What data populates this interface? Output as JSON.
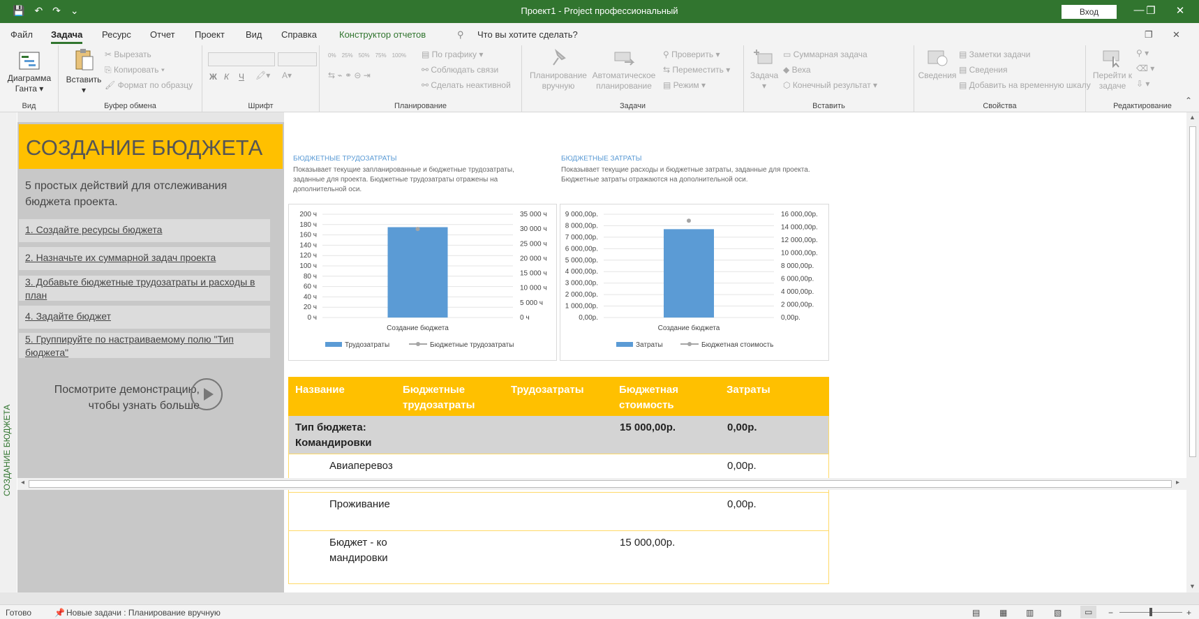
{
  "titlebar": {
    "title": "Проект1  -  Project профессиональный",
    "signin": "Вход",
    "minimize": "—",
    "restore": "❐",
    "close": "✕"
  },
  "menu": {
    "tabs": [
      "Файл",
      "Задача",
      "Ресурс",
      "Отчет",
      "Проект",
      "Вид",
      "Справка",
      "Конструктор отчетов"
    ],
    "active": "Задача",
    "search_placeholder": "Что вы хотите сделать?"
  },
  "ribbon": {
    "view": {
      "gantt": "Диаграмма Ганта",
      "label": "Вид"
    },
    "clipboard": {
      "paste": "Вставить",
      "cut": "Вырезать",
      "copy": "Копировать",
      "format_painter": "Формат по образцу",
      "label": "Буфер обмена"
    },
    "font": {
      "bold": "Ж",
      "italic": "К",
      "underline": "Ч",
      "label": "Шрифт"
    },
    "schedule": {
      "on_track": "По графику",
      "respect_links": "Соблюдать связи",
      "inactivate": "Сделать неактивной",
      "pcts": [
        "0%",
        "25%",
        "50%",
        "75%",
        "100%"
      ],
      "label": "Планирование"
    },
    "tasks": {
      "manual": "Планирование вручную",
      "auto": "Автоматическое планирование",
      "inspect": "Проверить",
      "move": "Переместить",
      "mode": "Режим",
      "label": "Задачи"
    },
    "insert": {
      "task": "Задача",
      "summary": "Суммарная задача",
      "milestone": "Веха",
      "deliverable": "Конечный результат",
      "label": "Вставить"
    },
    "properties": {
      "information": "Сведения",
      "notes": "Заметки задачи",
      "details": "Сведения",
      "timeline": "Добавить на временную шкалу",
      "label": "Свойства"
    },
    "editing": {
      "goto": "Перейти к задаче",
      "label": "Редактирование"
    }
  },
  "side_vertical_label": "СОЗДАНИЕ БЮДЖЕТА",
  "left_panel": {
    "title": "СОЗДАНИЕ БЮДЖЕТА",
    "intro": "5 простых действий для отслеживания бюджета проекта.",
    "steps": [
      "1. Создайте ресурсы бюджета",
      "2. Назначьте их суммарной задач проекта",
      "3. Добавьте бюджетные трудозатраты и расходы в план",
      "4. Задайте бюджет",
      "5. Группируйте по настраиваемому полю \"Тип бюджета\""
    ],
    "demo": "Посмотрите демонстрацию, чтобы узнать больше"
  },
  "charts": [
    {
      "heading": "БЮДЖЕТНЫЕ ТРУДОЗАТРАТЫ",
      "description": "Показывает текущие запланированные и бюджетные трудозатраты, заданные для проекта. Бюджетные трудозатраты отражены на дополнительной оси."
    },
    {
      "heading": "БЮДЖЕТНЫЕ ЗАТРАТЫ",
      "description": "Показывает текущие расходы и бюджетные затраты, заданные для проекта. Бюджетные затраты отражаются на дополнительной оси."
    }
  ],
  "chart_data": [
    {
      "type": "bar",
      "categories": [
        "Создание бюджета"
      ],
      "series": [
        {
          "name": "Трудозатраты",
          "values": [
            175
          ],
          "axis": "primary",
          "kind": "bar",
          "color": "#5b9bd5"
        },
        {
          "name": "Бюджетные трудозатраты",
          "values": [
            30000
          ],
          "axis": "secondary",
          "kind": "line",
          "color": "#a5a5a5"
        }
      ],
      "y_ticks": [
        "200 ч",
        "180 ч",
        "160 ч",
        "140 ч",
        "120 ч",
        "100 ч",
        "80 ч",
        "60 ч",
        "40 ч",
        "20 ч",
        "0 ч"
      ],
      "y2_ticks": [
        "35 000 ч",
        "30 000 ч",
        "25 000 ч",
        "20 000 ч",
        "15 000 ч",
        "10 000 ч",
        "5 000 ч",
        "0 ч"
      ],
      "ylim": [
        0,
        200
      ],
      "y2lim": [
        0,
        35000
      ],
      "legend": "bottom",
      "grid": true
    },
    {
      "type": "bar",
      "categories": [
        "Создание бюджета"
      ],
      "series": [
        {
          "name": "Затраты",
          "values": [
            7700
          ],
          "axis": "primary",
          "kind": "bar",
          "color": "#5b9bd5"
        },
        {
          "name": "Бюджетная стоимость",
          "values": [
            15000
          ],
          "axis": "secondary",
          "kind": "line",
          "color": "#a5a5a5"
        }
      ],
      "y_ticks": [
        "9 000,00р.",
        "8 000,00р.",
        "7 000,00р.",
        "6 000,00р.",
        "5 000,00р.",
        "4 000,00р.",
        "3 000,00р.",
        "2 000,00р.",
        "1 000,00р.",
        "0,00р."
      ],
      "y2_ticks": [
        "16 000,00р.",
        "14 000,00р.",
        "12 000,00р.",
        "10 000,00р.",
        "8 000,00р.",
        "6 000,00р.",
        "4 000,00р.",
        "2 000,00р.",
        "0,00р."
      ],
      "ylim": [
        0,
        9000
      ],
      "y2lim": [
        0,
        16000
      ],
      "legend": "bottom",
      "grid": true
    }
  ],
  "table": {
    "headers": [
      "Название",
      "Бюджетные трудозатраты",
      "Трудозатраты",
      "Бюджетная стоимость",
      "Затраты"
    ],
    "group": {
      "name": "Тип бюджета: Командировки",
      "budget_cost": "15 000,00р.",
      "cost": "0,00р."
    },
    "rows": [
      {
        "name": "Авиаперевозки",
        "budget_cost": "",
        "cost": "0,00р."
      },
      {
        "name": "Проживание",
        "budget_cost": "",
        "cost": "0,00р."
      },
      {
        "name": "Бюджет - командировки",
        "budget_cost": "15 000,00р.",
        "cost": ""
      }
    ]
  },
  "status": {
    "ready": "Готово",
    "new_tasks": "Новые задачи : Планирование вручную"
  }
}
